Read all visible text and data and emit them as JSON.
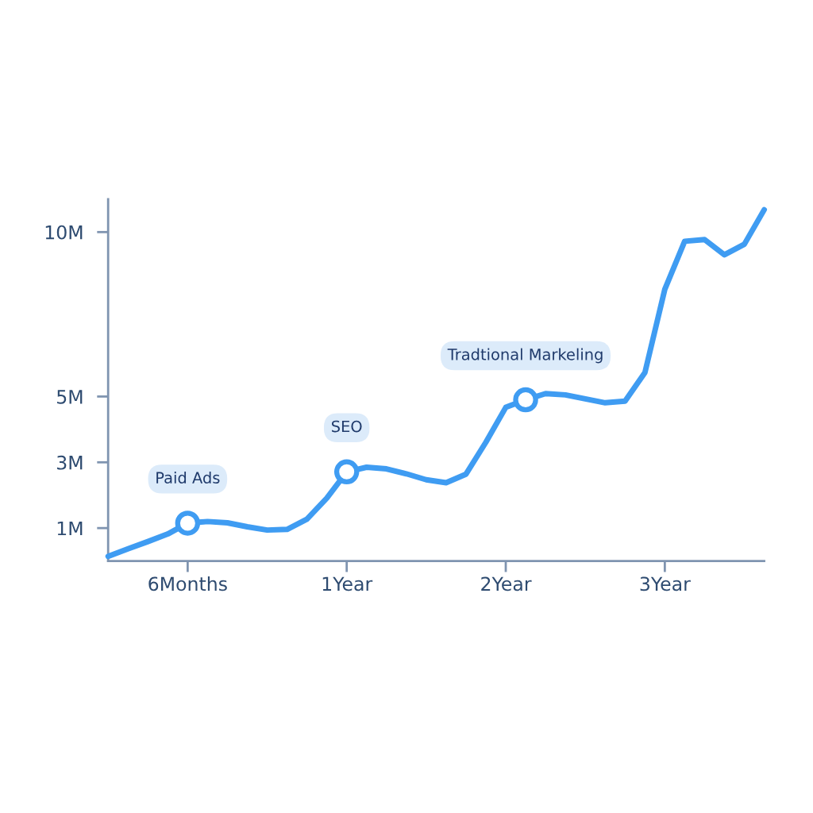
{
  "chart_data": {
    "type": "line",
    "categories": [
      null,
      null,
      null,
      null,
      "6Months",
      null,
      null,
      null,
      null,
      null,
      null,
      null,
      "1Year",
      null,
      null,
      null,
      null,
      null,
      null,
      null,
      "2Year",
      null,
      null,
      null,
      null,
      null,
      null,
      null,
      "3Year",
      null,
      null,
      null,
      null,
      null
    ],
    "ylim": [
      0,
      11
    ],
    "yticks": [
      {
        "value": 1,
        "label": "1M"
      },
      {
        "value": 3,
        "label": "3M"
      },
      {
        "value": 5,
        "label": "5M"
      },
      {
        "value": 10,
        "label": "10M"
      }
    ],
    "grid": false,
    "series": [
      {
        "color": "#3f9cf2",
        "line_style": "solid",
        "values": [
          0.14,
          0.37,
          0.59,
          0.82,
          1.15,
          1.2,
          1.16,
          1.04,
          0.94,
          0.96,
          1.27,
          1.91,
          2.71,
          2.85,
          2.8,
          2.65,
          2.47,
          2.38,
          2.64,
          3.61,
          4.67,
          4.9,
          5.09,
          5.05,
          4.93,
          4.81,
          4.86,
          5.73,
          8.26,
          9.72,
          9.77,
          9.31,
          9.63,
          10.68
        ]
      },
      {
        "type": "scatter",
        "color": "#3f9cf2",
        "marker": "circle",
        "values": [
          null,
          null,
          null,
          null,
          1.15,
          null,
          null,
          null,
          null,
          null,
          null,
          null,
          2.71,
          null,
          null,
          null,
          null,
          null,
          null,
          null,
          null,
          4.9,
          null,
          null,
          null,
          null,
          null,
          null,
          null,
          null,
          null,
          null,
          null,
          null
        ]
      }
    ],
    "annotations": [
      "Paid Ads",
      "SEO",
      "Tradtional Markeling"
    ]
  }
}
